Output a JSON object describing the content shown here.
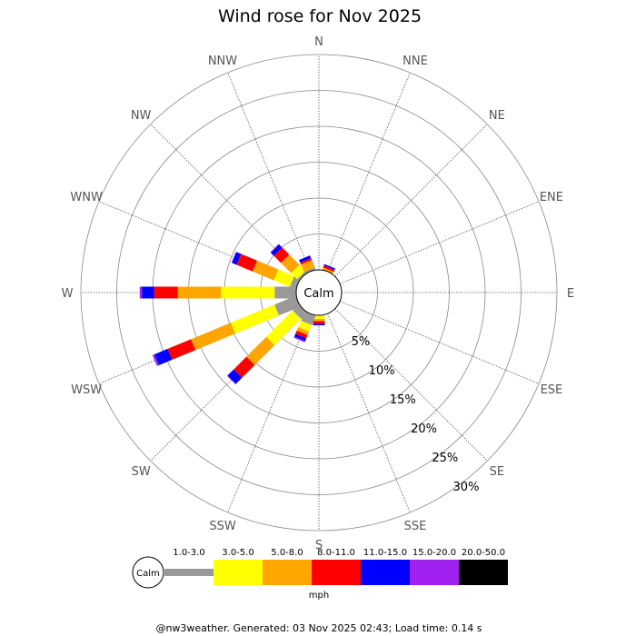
{
  "chart_data": {
    "type": "polar-stacked-bar",
    "title": "Wind rose for Nov 2025",
    "directions": [
      "N",
      "NNE",
      "NE",
      "ENE",
      "E",
      "ESE",
      "SE",
      "SSE",
      "S",
      "SSW",
      "SW",
      "WSW",
      "W",
      "WNW",
      "NW",
      "NNW"
    ],
    "ring_labels": [
      "5%",
      "10%",
      "15%",
      "20%",
      "25%",
      "30%"
    ],
    "ring_values": [
      5,
      10,
      15,
      20,
      25,
      30
    ],
    "r_max": 30,
    "calm_label": "Calm",
    "units": "mph",
    "speed_bins": [
      {
        "label": "1.0-3.0",
        "color": "#999999"
      },
      {
        "label": "3.0-5.0",
        "color": "#ffff00"
      },
      {
        "label": "5.0-8.0",
        "color": "#ffa500"
      },
      {
        "label": "8.0-11.0",
        "color": "#ff0000"
      },
      {
        "label": "11.0-15.0",
        "color": "#0000ff"
      },
      {
        "label": "15.0-20.0",
        "color": "#a020f0"
      },
      {
        "label": "20.0-50.0",
        "color": "#000000"
      }
    ],
    "series": [
      {
        "direction": "N",
        "values": [
          0.0,
          0.0,
          0.0,
          0.0,
          0.0,
          0.0,
          0.0
        ]
      },
      {
        "direction": "NNE",
        "values": [
          0.0,
          0.0,
          0.3,
          0.3,
          0.2,
          0.0,
          0.0
        ]
      },
      {
        "direction": "NE",
        "values": [
          0.0,
          0.0,
          0.0,
          0.0,
          0.0,
          0.0,
          0.0
        ]
      },
      {
        "direction": "ENE",
        "values": [
          0.0,
          0.0,
          0.0,
          0.0,
          0.0,
          0.0,
          0.0
        ]
      },
      {
        "direction": "E",
        "values": [
          0.0,
          0.0,
          0.0,
          0.0,
          0.0,
          0.0,
          0.0
        ]
      },
      {
        "direction": "ESE",
        "values": [
          0.0,
          0.0,
          0.0,
          0.0,
          0.0,
          0.0,
          0.0
        ]
      },
      {
        "direction": "SE",
        "values": [
          0.0,
          0.0,
          0.0,
          0.0,
          0.0,
          0.0,
          0.0
        ]
      },
      {
        "direction": "SSE",
        "values": [
          0.0,
          0.0,
          0.0,
          0.0,
          0.0,
          0.0,
          0.0
        ]
      },
      {
        "direction": "S",
        "values": [
          0.0,
          0.5,
          0.3,
          0.4,
          0.2,
          0.0,
          0.0
        ]
      },
      {
        "direction": "SSW",
        "values": [
          1.4,
          1.0,
          0.5,
          0.5,
          0.4,
          0.2,
          0.0
        ]
      },
      {
        "direction": "SW",
        "values": [
          1.2,
          5.2,
          3.9,
          2.5,
          1.2,
          0.1,
          0.0
        ]
      },
      {
        "direction": "WSW",
        "values": [
          3.2,
          6.6,
          6.0,
          3.5,
          2.0,
          0.3,
          0.0
        ]
      },
      {
        "direction": "W",
        "values": [
          3.0,
          7.5,
          6.0,
          3.3,
          1.7,
          0.3,
          0.0
        ]
      },
      {
        "direction": "WNW",
        "values": [
          0.9,
          2.4,
          3.2,
          2.4,
          0.7,
          0.1,
          0.0
        ]
      },
      {
        "direction": "NW",
        "values": [
          0.3,
          1.2,
          2.0,
          1.4,
          0.6,
          0.1,
          0.0
        ]
      },
      {
        "direction": "NNW",
        "values": [
          0.3,
          0.0,
          1.1,
          0.3,
          0.4,
          0.0,
          0.0
        ]
      }
    ],
    "grid": true,
    "legend_position": "bottom"
  },
  "footer": "@nw3weather. Generated: 03 Nov 2025 02:43; Load time: 0.14 s"
}
